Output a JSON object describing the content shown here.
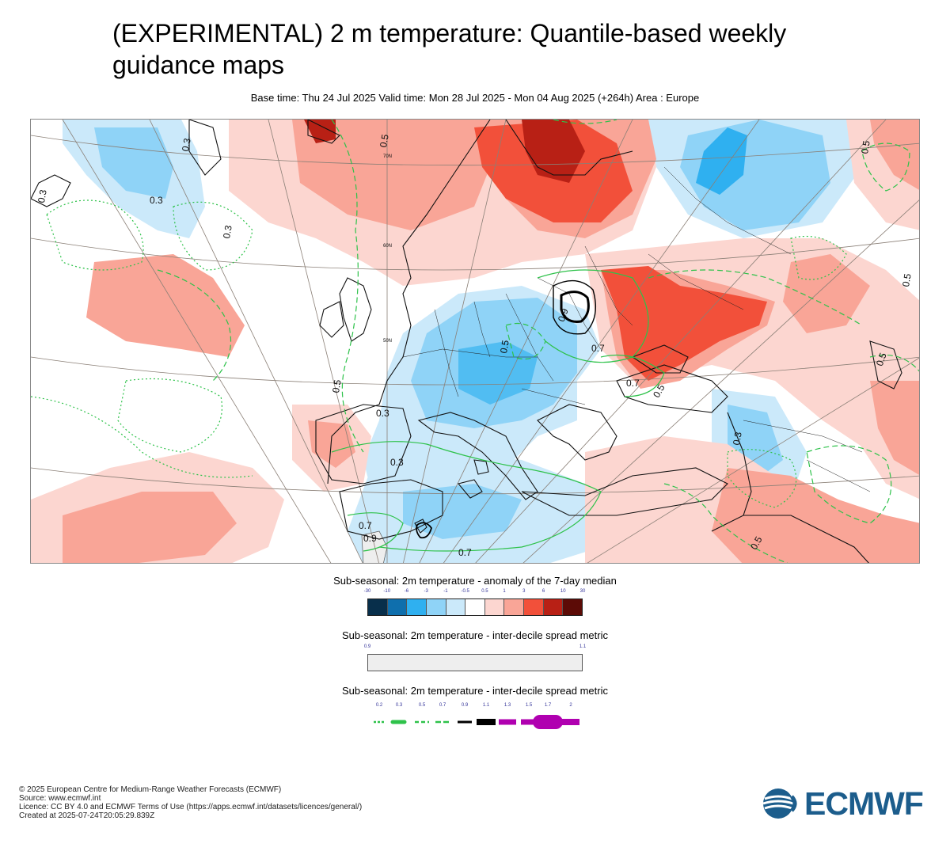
{
  "header": {
    "title": "(EXPERIMENTAL) 2 m temperature: Quantile-based weekly guidance maps",
    "subtitle": "Base time: Thu 24 Jul 2025 Valid time: Mon 28 Jul 2025 - Mon 04 Aug 2025 (+264h) Area : Europe"
  },
  "map": {
    "area": "Europe",
    "contour_labels": [
      "0.3",
      "0.3",
      "0.3",
      "0.3",
      "0.3",
      "0.3",
      "0.3",
      "0.5",
      "0.5",
      "0.5",
      "0.5",
      "0.5",
      "0.5",
      "0.5",
      "0.5",
      "0.7",
      "0.7",
      "0.7",
      "0.7",
      "0.9",
      "0.9"
    ],
    "lat_labels": [
      "70N",
      "60N",
      "50N"
    ]
  },
  "legend_anomaly": {
    "title": "Sub-seasonal: 2m temperature - anomaly of the 7-day median",
    "ticks": [
      "-30",
      "-10",
      "-6",
      "-3",
      "-1",
      "-0.5",
      "0.5",
      "1",
      "3",
      "6",
      "10",
      "30"
    ],
    "colors": [
      "#082f4b",
      "#0f6fad",
      "#2fb0f0",
      "#8fd3f7",
      "#cbe9fa",
      "#ffffff",
      "#fcd6d0",
      "#f9a597",
      "#f2503a",
      "#b82015",
      "#5c0b06"
    ]
  },
  "legend_spread_fill": {
    "title": "Sub-seasonal: 2m temperature - inter-decile spread metric",
    "ticks": [
      "0.9",
      "1.1"
    ],
    "color": "#eeeeee"
  },
  "legend_spread_lines": {
    "title": "Sub-seasonal: 2m temperature - inter-decile spread metric",
    "ticks": [
      "0.2",
      "0.3",
      "0.5",
      "0.7",
      "0.9",
      "1.1",
      "1.3",
      "1.5",
      "1.7",
      "2"
    ],
    "colors": {
      "green": "#2ec24a",
      "black": "#000000",
      "magenta": "#b000b0"
    }
  },
  "credits": {
    "copyright": "© 2025 European Centre for Medium-Range Weather Forecasts (ECMWF)",
    "source": "Source: www.ecmwf.int",
    "licence": "Licence: CC BY 4.0 and ECMWF Terms of Use (https://apps.ecmwf.int/datasets/licences/general/)",
    "created": "Created at 2025-07-24T20:05:29.839Z"
  },
  "logo": {
    "text": "ECMWF",
    "color": "#1c5d8c",
    "icon": "ecmwf-logo-icon"
  }
}
